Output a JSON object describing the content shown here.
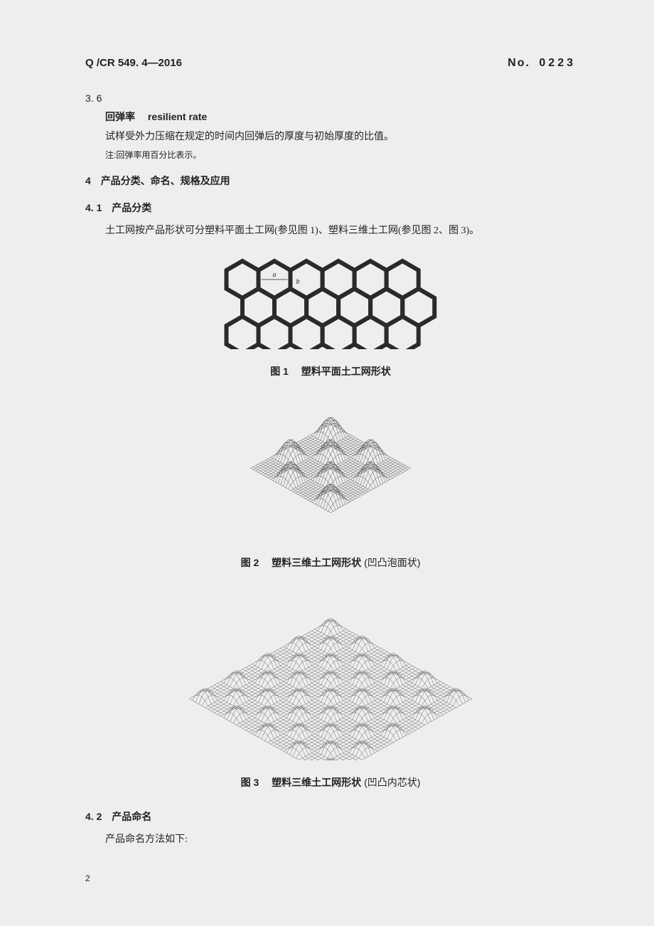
{
  "header": {
    "doc_code": "Q /CR 549. 4—2016",
    "doc_no_label": "No.",
    "doc_no_value": "0223"
  },
  "sec36": {
    "num": "3. 6",
    "term_zh": "回弹率",
    "term_en": "resilient rate",
    "definition": "试样受外力压缩在规定的时间内回弹后的厚度与初始厚度的比值。",
    "note": "注:回弹率用百分比表示。"
  },
  "sec4": {
    "num": "4",
    "title": "产品分类、命名、规格及应用"
  },
  "sec41": {
    "num": "4. 1",
    "title": "产品分类",
    "body": "土工网按产品形状可分塑料平面土工网(参见图 1)、塑料三维土工网(参见图 2、图 3)。"
  },
  "fig1": {
    "type": "diagram",
    "label": "图 1",
    "caption": "塑料平面土工网形状",
    "stroke_color": "#2a2a2a",
    "stroke_width": 6,
    "hex_radius": 26,
    "cols": 6,
    "rows": 3,
    "dim_a": "a",
    "dim_b": "b"
  },
  "fig2": {
    "type": "diagram",
    "label": "图 2",
    "caption": "塑料三维土工网形状",
    "caption_extra": "(凹凸泡面状)",
    "stroke_color": "#555555",
    "grid_n": 4,
    "amplitude": 24
  },
  "fig3": {
    "type": "diagram",
    "label": "图 3",
    "caption": "塑料三维土工网形状",
    "caption_extra": "(凹凸内芯状)",
    "stroke_color": "#666666",
    "grid_n": 9,
    "amplitude": 14
  },
  "sec42": {
    "num": "4. 2",
    "title": "产品命名",
    "body": "产品命名方法如下:"
  },
  "page_number": "2"
}
